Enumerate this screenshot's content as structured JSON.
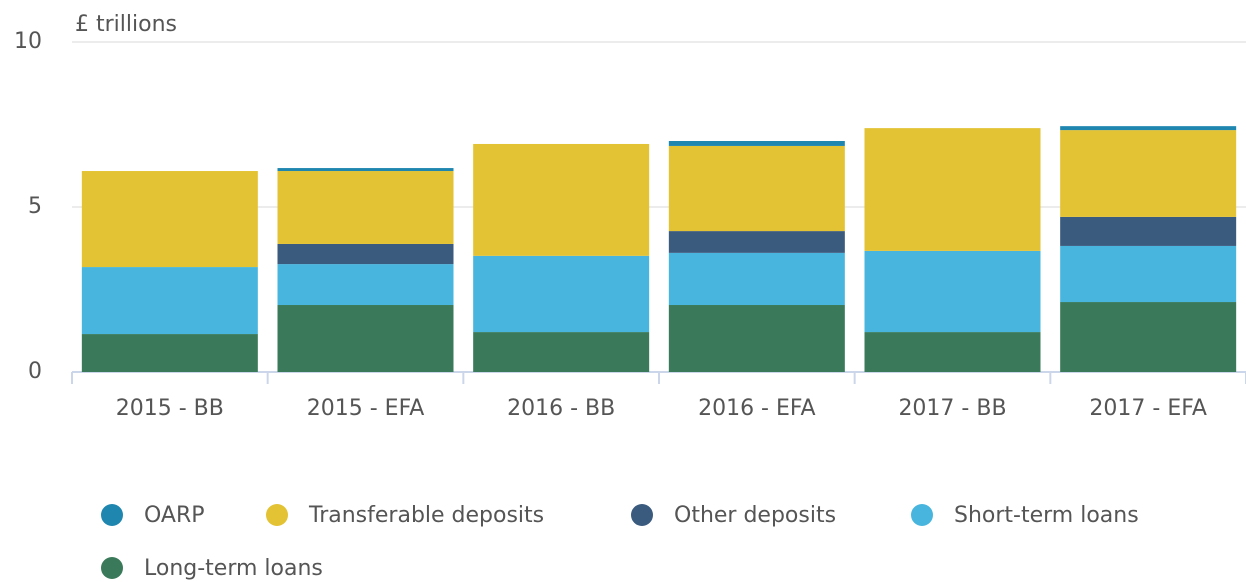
{
  "chart_data": {
    "type": "bar",
    "stacked": true,
    "y_axis_label": "£ trillions",
    "categories": [
      "2015 - BB",
      "2015 - EFA",
      "2016 - BB",
      "2016 - EFA",
      "2017 - BB",
      "2017 - EFA"
    ],
    "series": [
      {
        "name": "OARP",
        "color": "#1f86b0",
        "values": [
          0,
          0.09,
          0,
          0.15,
          0,
          0.12
        ]
      },
      {
        "name": "Transferable deposits",
        "color": "#e3c233",
        "values": [
          2.91,
          2.21,
          3.39,
          2.58,
          3.72,
          2.63
        ]
      },
      {
        "name": "Other deposits",
        "color": "#3a5a7e",
        "values": [
          0,
          0.61,
          0,
          0.66,
          0,
          0.88
        ]
      },
      {
        "name": "Short-term loans",
        "color": "#48b5de",
        "values": [
          2.03,
          1.24,
          2.31,
          1.58,
          2.46,
          1.7
        ]
      },
      {
        "name": "Long-term loans",
        "color": "#3a7a5a",
        "values": [
          1.15,
          2.03,
          1.21,
          2.03,
          1.21,
          2.12
        ]
      }
    ],
    "ylim": [
      0,
      10
    ],
    "yticks": [
      0,
      5,
      10
    ],
    "grid": true
  }
}
